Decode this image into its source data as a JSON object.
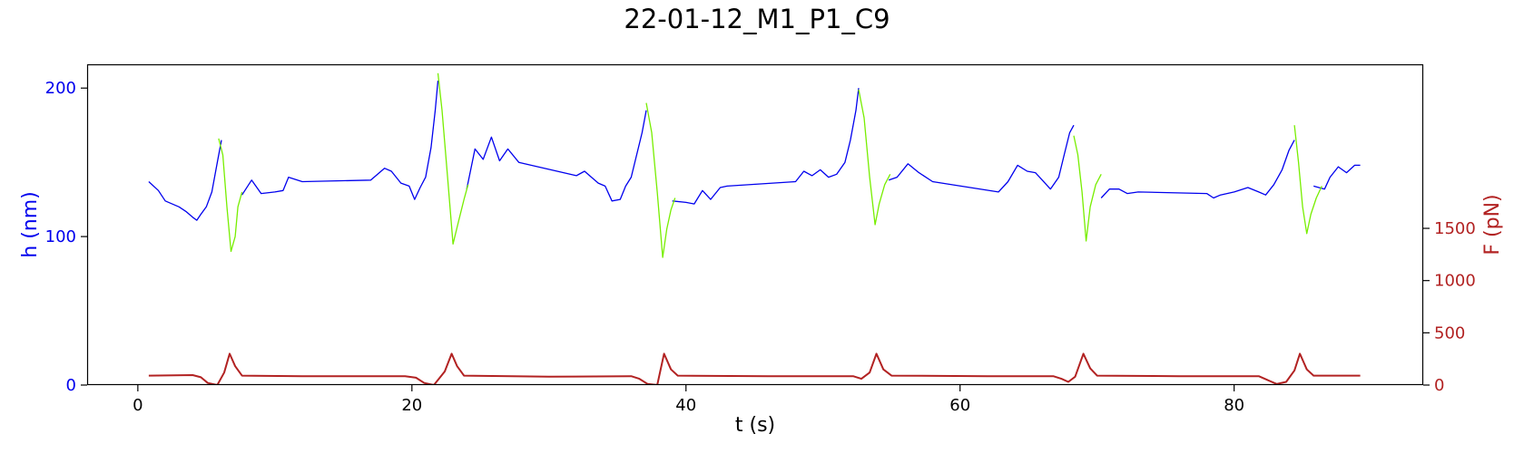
{
  "chart_data": {
    "type": "line",
    "title": "22-01-12_M1_P1_C9",
    "xlabel": "t (s)",
    "ylabel_left": "h (nm)",
    "ylabel_right": "F (pN)",
    "xlim": [
      -3.7,
      93.8
    ],
    "ylim_left": [
      0,
      216
    ],
    "ylim_right": [
      0,
      3070
    ],
    "x_ticks": [
      0,
      20,
      40,
      60,
      80
    ],
    "y_left_ticks": [
      0,
      100,
      200
    ],
    "y_right_ticks": [
      0,
      500,
      1000,
      1500
    ],
    "grid": false,
    "colors": {
      "h_baseline": "#0000ee",
      "h_compression": "#77ee00",
      "force": "#b22222",
      "left_axis": "#0000ee",
      "right_axis": "#b22222"
    },
    "series": [
      {
        "axis": "left",
        "segment": "baseline",
        "points": [
          [
            [
              0.8,
              137
            ],
            [
              1.5,
              131
            ],
            [
              2,
              124
            ],
            [
              3,
              120
            ],
            [
              3.5,
              117
            ],
            [
              4,
              113
            ],
            [
              4.3,
              111
            ],
            [
              4.6,
              115
            ],
            [
              5,
              120
            ],
            [
              5.4,
              130
            ],
            [
              5.8,
              150
            ],
            [
              6.1,
              165
            ]
          ],
          [
            [
              7.6,
              128
            ],
            [
              8.3,
              138
            ],
            [
              9,
              129
            ],
            [
              10,
              130
            ],
            [
              10.6,
              131
            ],
            [
              11,
              140
            ],
            [
              12,
              137
            ],
            [
              17,
              138
            ],
            [
              18,
              146
            ],
            [
              18.5,
              144
            ],
            [
              19.2,
              136
            ],
            [
              19.8,
              134
            ],
            [
              20.2,
              125
            ],
            [
              20.6,
              133
            ],
            [
              21,
              140
            ],
            [
              21.4,
              160
            ],
            [
              21.7,
              185
            ],
            [
              21.9,
              205
            ]
          ],
          [
            [
              24,
              132
            ],
            [
              24.6,
              159
            ],
            [
              25.2,
              152
            ],
            [
              25.8,
              167
            ],
            [
              26.4,
              151
            ],
            [
              27,
              159
            ],
            [
              27.8,
              150
            ],
            [
              32,
              141
            ],
            [
              32.6,
              144
            ],
            [
              33.6,
              136
            ],
            [
              34.1,
              134
            ],
            [
              34.6,
              124
            ],
            [
              35.2,
              125
            ],
            [
              35.6,
              134
            ],
            [
              36,
              140
            ],
            [
              36.4,
              155
            ],
            [
              36.8,
              170
            ],
            [
              37.1,
              185
            ]
          ],
          [
            [
              39,
              124
            ],
            [
              40,
              123
            ],
            [
              40.6,
              122
            ],
            [
              41.2,
              131
            ],
            [
              41.8,
              125
            ],
            [
              42.5,
              133
            ],
            [
              43,
              134
            ],
            [
              48,
              137
            ],
            [
              48.6,
              144
            ],
            [
              49.2,
              141
            ],
            [
              49.8,
              145
            ],
            [
              50.4,
              140
            ],
            [
              51,
              142
            ],
            [
              51.6,
              150
            ],
            [
              52,
              165
            ],
            [
              52.4,
              185
            ],
            [
              52.6,
              200
            ]
          ],
          [
            [
              54.8,
              138
            ],
            [
              55.4,
              140
            ],
            [
              56.2,
              149
            ],
            [
              57,
              143
            ],
            [
              58,
              137
            ],
            [
              62.8,
              130
            ],
            [
              63.5,
              137
            ],
            [
              64.2,
              148
            ],
            [
              64.9,
              144
            ],
            [
              65.5,
              143
            ],
            [
              66,
              138
            ],
            [
              66.6,
              132
            ],
            [
              67.2,
              140
            ],
            [
              67.6,
              155
            ],
            [
              68,
              170
            ],
            [
              68.3,
              175
            ]
          ],
          [
            [
              70.3,
              126
            ],
            [
              70.9,
              132
            ],
            [
              71.6,
              132
            ],
            [
              72.2,
              129
            ],
            [
              73,
              130
            ],
            [
              78,
              129
            ],
            [
              78.5,
              126
            ],
            [
              79,
              128
            ],
            [
              80,
              130
            ],
            [
              81,
              133
            ],
            [
              81.8,
              130
            ],
            [
              82.3,
              128
            ],
            [
              82.9,
              135
            ],
            [
              83.5,
              145
            ],
            [
              84,
              158
            ],
            [
              84.4,
              165
            ]
          ],
          [
            [
              85.8,
              134
            ],
            [
              86.6,
              132
            ],
            [
              87,
              140
            ],
            [
              87.6,
              147
            ],
            [
              88.2,
              143
            ],
            [
              88.8,
              148
            ],
            [
              89.2,
              148
            ]
          ]
        ]
      },
      {
        "axis": "left",
        "segment": "compression",
        "points": [
          [
            [
              5.9,
              166
            ],
            [
              6.2,
              155
            ],
            [
              6.5,
              120
            ],
            [
              6.8,
              90
            ],
            [
              7.1,
              100
            ],
            [
              7.3,
              120
            ],
            [
              7.6,
              130
            ]
          ],
          [
            [
              21.9,
              210
            ],
            [
              22.2,
              185
            ],
            [
              22.6,
              140
            ],
            [
              23,
              95
            ],
            [
              23.4,
              110
            ],
            [
              23.8,
              125
            ],
            [
              24.1,
              135
            ]
          ],
          [
            [
              37.1,
              190
            ],
            [
              37.5,
              170
            ],
            [
              37.9,
              130
            ],
            [
              38.3,
              86
            ],
            [
              38.6,
              105
            ],
            [
              38.9,
              118
            ],
            [
              39.2,
              126
            ]
          ],
          [
            [
              52.6,
              199
            ],
            [
              53,
              180
            ],
            [
              53.4,
              140
            ],
            [
              53.8,
              108
            ],
            [
              54.1,
              122
            ],
            [
              54.5,
              135
            ],
            [
              54.9,
              142
            ]
          ],
          [
            [
              68.3,
              168
            ],
            [
              68.6,
              155
            ],
            [
              68.9,
              130
            ],
            [
              69.2,
              97
            ],
            [
              69.5,
              120
            ],
            [
              69.9,
              135
            ],
            [
              70.3,
              142
            ]
          ],
          [
            [
              84.4,
              175
            ],
            [
              84.7,
              150
            ],
            [
              85,
              120
            ],
            [
              85.3,
              102
            ],
            [
              85.6,
              115
            ],
            [
              86,
              126
            ],
            [
              86.4,
              134
            ]
          ]
        ]
      },
      {
        "axis": "right",
        "segment": "force",
        "points": [
          [
            0.8,
            90
          ],
          [
            4,
            95
          ],
          [
            4.6,
            75
          ],
          [
            5.1,
            20
          ],
          [
            5.8,
            0
          ],
          [
            6.3,
            120
          ],
          [
            6.7,
            300
          ],
          [
            7.1,
            180
          ],
          [
            7.6,
            90
          ],
          [
            12,
            85
          ],
          [
            19.5,
            85
          ],
          [
            20.3,
            70
          ],
          [
            20.9,
            20
          ],
          [
            21.6,
            0
          ],
          [
            22.4,
            130
          ],
          [
            22.9,
            300
          ],
          [
            23.3,
            180
          ],
          [
            23.8,
            90
          ],
          [
            30,
            80
          ],
          [
            36,
            85
          ],
          [
            36.6,
            60
          ],
          [
            37.2,
            10
          ],
          [
            37.9,
            0
          ],
          [
            38.4,
            300
          ],
          [
            38.9,
            150
          ],
          [
            39.4,
            90
          ],
          [
            46,
            85
          ],
          [
            52.2,
            85
          ],
          [
            52.8,
            60
          ],
          [
            53.4,
            120
          ],
          [
            53.9,
            300
          ],
          [
            54.4,
            150
          ],
          [
            55,
            90
          ],
          [
            62,
            85
          ],
          [
            66.8,
            85
          ],
          [
            67.4,
            60
          ],
          [
            67.9,
            30
          ],
          [
            68.4,
            80
          ],
          [
            69,
            300
          ],
          [
            69.5,
            160
          ],
          [
            70,
            90
          ],
          [
            76,
            85
          ],
          [
            81.8,
            85
          ],
          [
            82.4,
            50
          ],
          [
            83.1,
            10
          ],
          [
            83.8,
            30
          ],
          [
            84.4,
            140
          ],
          [
            84.8,
            300
          ],
          [
            85.3,
            150
          ],
          [
            85.8,
            90
          ],
          [
            89.2,
            90
          ]
        ]
      }
    ]
  }
}
